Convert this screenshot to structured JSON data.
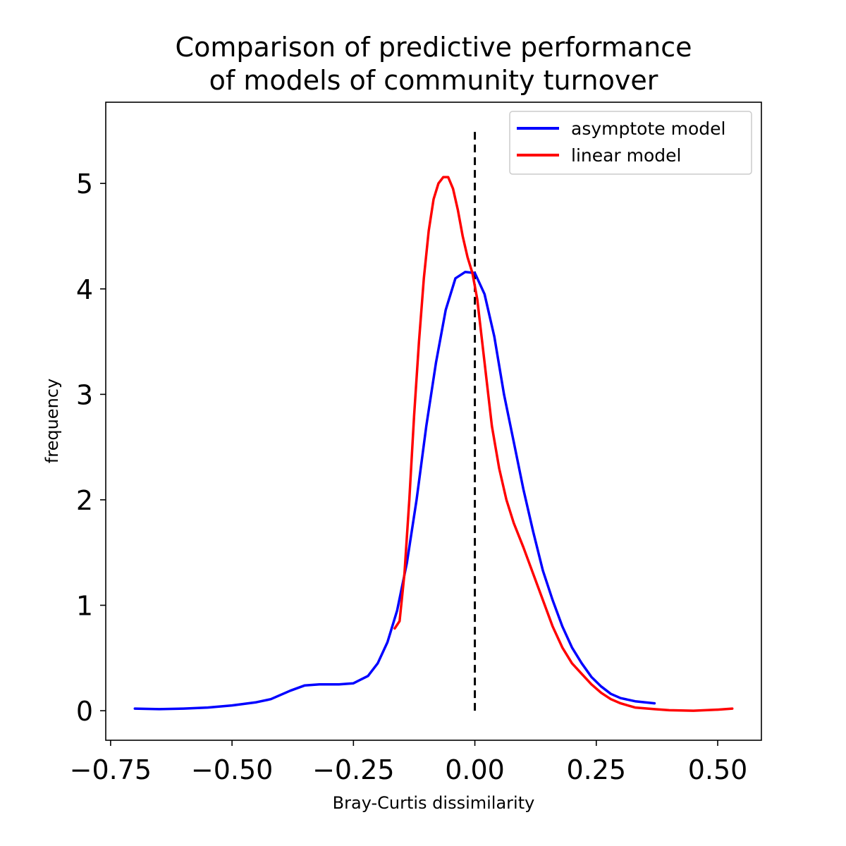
{
  "chart_data": {
    "type": "line",
    "title_line1": "Comparison of predictive performance",
    "title_line2": "of models of community turnover",
    "xlabel": "Bray-Curtis dissimilarity",
    "ylabel": "frequency",
    "xlim": [
      -0.76,
      0.59
    ],
    "ylim": [
      -0.28,
      5.77
    ],
    "xticks": [
      -0.75,
      -0.5,
      -0.25,
      0.0,
      0.25,
      0.5
    ],
    "xtick_labels": [
      "−0.75",
      "−0.50",
      "−0.25",
      "0.00",
      "0.25",
      "0.50"
    ],
    "yticks": [
      0,
      1,
      2,
      3,
      4,
      5
    ],
    "ytick_labels": [
      "0",
      "1",
      "2",
      "3",
      "4",
      "5"
    ],
    "legend_position": "top-right",
    "reference_line": {
      "x": 0.0,
      "y_range": [
        0.0,
        5.5
      ],
      "color": "#000000",
      "style": "dashed"
    },
    "series": [
      {
        "name": "asymptote model",
        "color": "#0000ff",
        "points": [
          [
            -0.7,
            0.02
          ],
          [
            -0.65,
            0.015
          ],
          [
            -0.6,
            0.02
          ],
          [
            -0.55,
            0.03
          ],
          [
            -0.5,
            0.05
          ],
          [
            -0.45,
            0.08
          ],
          [
            -0.42,
            0.11
          ],
          [
            -0.38,
            0.19
          ],
          [
            -0.35,
            0.24
          ],
          [
            -0.32,
            0.25
          ],
          [
            -0.28,
            0.25
          ],
          [
            -0.25,
            0.26
          ],
          [
            -0.22,
            0.33
          ],
          [
            -0.2,
            0.45
          ],
          [
            -0.18,
            0.65
          ],
          [
            -0.16,
            0.95
          ],
          [
            -0.14,
            1.4
          ],
          [
            -0.12,
            2.0
          ],
          [
            -0.1,
            2.7
          ],
          [
            -0.08,
            3.3
          ],
          [
            -0.06,
            3.8
          ],
          [
            -0.04,
            4.1
          ],
          [
            -0.02,
            4.16
          ],
          [
            0.0,
            4.15
          ],
          [
            0.02,
            3.95
          ],
          [
            0.04,
            3.55
          ],
          [
            0.06,
            3.0
          ],
          [
            0.08,
            2.55
          ],
          [
            0.1,
            2.1
          ],
          [
            0.12,
            1.7
          ],
          [
            0.14,
            1.33
          ],
          [
            0.16,
            1.05
          ],
          [
            0.18,
            0.8
          ],
          [
            0.2,
            0.6
          ],
          [
            0.22,
            0.45
          ],
          [
            0.24,
            0.32
          ],
          [
            0.26,
            0.23
          ],
          [
            0.28,
            0.16
          ],
          [
            0.3,
            0.12
          ],
          [
            0.33,
            0.09
          ],
          [
            0.37,
            0.07
          ]
        ]
      },
      {
        "name": "linear model",
        "color": "#ff0000",
        "points": [
          [
            -0.165,
            0.78
          ],
          [
            -0.155,
            0.85
          ],
          [
            -0.145,
            1.3
          ],
          [
            -0.135,
            2.0
          ],
          [
            -0.125,
            2.8
          ],
          [
            -0.115,
            3.5
          ],
          [
            -0.105,
            4.1
          ],
          [
            -0.095,
            4.55
          ],
          [
            -0.085,
            4.85
          ],
          [
            -0.075,
            5.0
          ],
          [
            -0.065,
            5.06
          ],
          [
            -0.055,
            5.06
          ],
          [
            -0.045,
            4.95
          ],
          [
            -0.035,
            4.75
          ],
          [
            -0.025,
            4.5
          ],
          [
            -0.015,
            4.3
          ],
          [
            -0.005,
            4.15
          ],
          [
            0.005,
            3.9
          ],
          [
            0.015,
            3.5
          ],
          [
            0.025,
            3.1
          ],
          [
            0.035,
            2.7
          ],
          [
            0.05,
            2.3
          ],
          [
            0.065,
            2.0
          ],
          [
            0.08,
            1.78
          ],
          [
            0.1,
            1.55
          ],
          [
            0.12,
            1.3
          ],
          [
            0.14,
            1.05
          ],
          [
            0.16,
            0.8
          ],
          [
            0.18,
            0.6
          ],
          [
            0.2,
            0.45
          ],
          [
            0.22,
            0.35
          ],
          [
            0.24,
            0.25
          ],
          [
            0.26,
            0.17
          ],
          [
            0.28,
            0.11
          ],
          [
            0.3,
            0.07
          ],
          [
            0.33,
            0.03
          ],
          [
            0.37,
            0.015
          ],
          [
            0.4,
            0.005
          ],
          [
            0.45,
            0.0
          ],
          [
            0.5,
            0.01
          ],
          [
            0.53,
            0.02
          ]
        ]
      }
    ]
  }
}
